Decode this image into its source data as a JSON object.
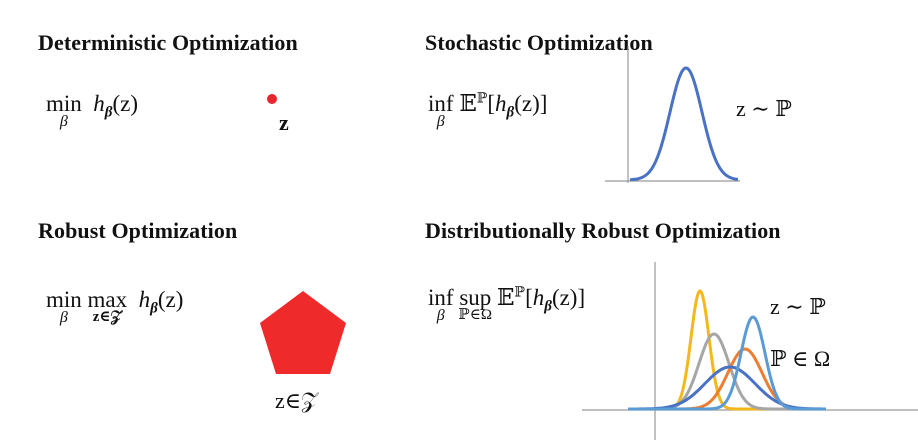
{
  "panels": {
    "deterministic": {
      "title": "Deterministic Optimization",
      "op": "min",
      "op_sub": "β",
      "objective_fn": "h",
      "objective_sub": "β",
      "objective_arg": "(z)",
      "point_label": "z"
    },
    "stochastic": {
      "title": "Stochastic Optimization",
      "op": "inf",
      "op_sub": "β",
      "expectation": "𝔼",
      "expectation_sup": "ℙ",
      "bracket_open": "[",
      "objective_fn": "h",
      "objective_sub": "β",
      "objective_arg": "(z)",
      "bracket_close": "]",
      "dist_label": "z ∼ ℙ"
    },
    "robust": {
      "title": "Robust Optimization",
      "op1": "min",
      "op1_sub": "β",
      "op2": "max",
      "op2_sub": "z∈𝒵",
      "objective_fn": "h",
      "objective_sub": "β",
      "objective_arg": "(z)",
      "set_label": "z∈𝒵"
    },
    "dro": {
      "title": "Distributionally Robust Optimization",
      "op1": "inf",
      "op1_sub": "β",
      "op2": "sup",
      "op2_sub": "ℙ∈Ω",
      "expectation": "𝔼",
      "expectation_sup": "ℙ",
      "bracket_open": "[",
      "objective_fn": "h",
      "objective_sub": "β",
      "objective_arg": "(z)",
      "bracket_close": "]",
      "dist_label": "z ∼ ℙ",
      "ambiguity_label": "ℙ ∈ Ω"
    }
  },
  "colors": {
    "point": "#e8262b",
    "polygon": "#ee2a2a",
    "stochastic_curve": "#4a72c4",
    "dro_curves": [
      "#f4b81c",
      "#a6a6a6",
      "#ed7d31",
      "#4a72c4",
      "#5b9bd5"
    ]
  }
}
